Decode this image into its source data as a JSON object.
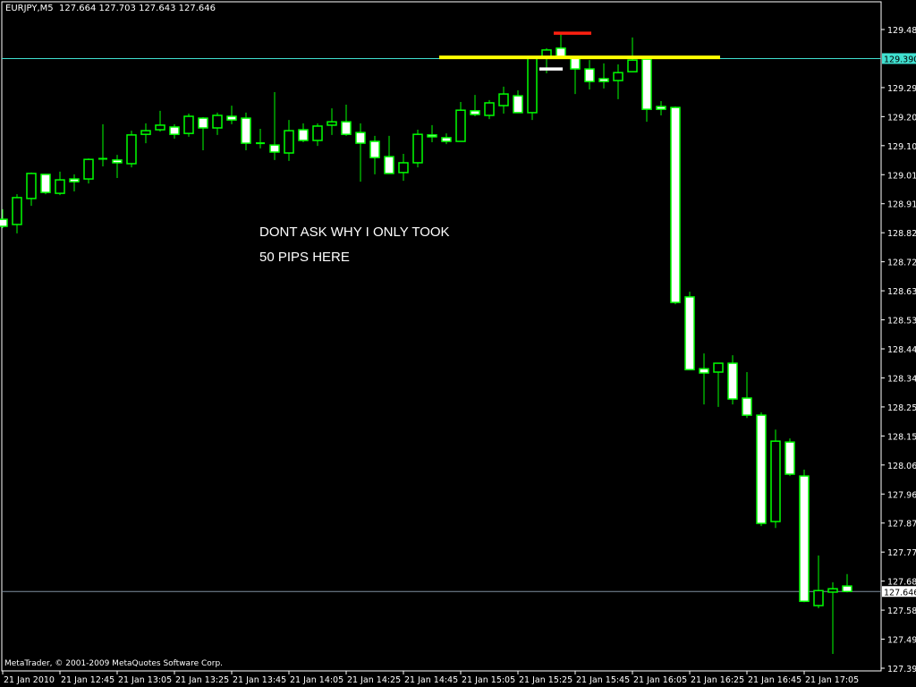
{
  "header": {
    "symbol": "EURJPY,M5",
    "open": "127.664",
    "high": "127.703",
    "low": "127.643",
    "close": "127.646"
  },
  "annotation_lines": [
    "DONT ASK WHY I ONLY TOOK",
    "50 PIPS HERE"
  ],
  "copyright": "MetaTrader, © 2001-2009 MetaQuotes Software Corp.",
  "colors": {
    "background": "#000000",
    "candle_outline": "#00ff00",
    "bear_body": "#ffffff",
    "bull_body": "#000000",
    "hline": "#40e0d0",
    "bid_line": "#8090a0",
    "yellow_line": "#ffff00",
    "red_line": "#ff2010",
    "white_line": "#ffffff"
  },
  "chart_data": {
    "type": "candlestick",
    "title": "",
    "ylim": [
      127.395,
      129.485
    ],
    "y_ticks": [
      "129.485",
      "129.295",
      "129.200",
      "129.105",
      "129.010",
      "128.915",
      "128.820",
      "128.725",
      "128.630",
      "128.535",
      "128.440",
      "128.345",
      "128.250",
      "128.155",
      "128.060",
      "127.965",
      "127.870",
      "127.775",
      "127.680",
      "127.585",
      "127.490",
      "127.395"
    ],
    "x_tick_labels": [
      "21 Jan 2010",
      "21 Jan 12:45",
      "21 Jan 13:05",
      "21 Jan 13:25",
      "21 Jan 13:45",
      "21 Jan 14:05",
      "21 Jan 14:25",
      "21 Jan 14:45",
      "21 Jan 15:05",
      "21 Jan 15:25",
      "21 Jan 15:45",
      "21 Jan 16:05",
      "21 Jan 16:25",
      "21 Jan 16:45",
      "21 Jan 17:05"
    ],
    "candles_ohlc": [
      [
        128.864,
        128.897,
        128.835,
        128.841
      ],
      [
        128.847,
        128.946,
        128.818,
        128.935
      ],
      [
        128.932,
        129.017,
        128.908,
        129.014
      ],
      [
        129.011,
        129.011,
        128.946,
        128.952
      ],
      [
        128.949,
        129.02,
        128.943,
        128.993
      ],
      [
        128.996,
        129.011,
        128.955,
        128.987
      ],
      [
        128.996,
        129.063,
        128.981,
        129.06
      ],
      [
        129.06,
        129.175,
        129.037,
        129.062
      ],
      [
        129.058,
        129.075,
        128.999,
        129.049
      ],
      [
        129.046,
        129.154,
        129.034,
        129.14
      ],
      [
        129.142,
        129.178,
        129.113,
        129.154
      ],
      [
        129.157,
        129.219,
        129.151,
        129.172
      ],
      [
        129.166,
        129.175,
        129.128,
        129.142
      ],
      [
        129.145,
        129.21,
        129.134,
        129.201
      ],
      [
        129.195,
        129.198,
        129.09,
        129.163
      ],
      [
        129.163,
        129.213,
        129.14,
        129.204
      ],
      [
        129.201,
        129.236,
        129.175,
        129.189
      ],
      [
        129.195,
        129.213,
        129.09,
        129.113
      ],
      [
        129.113,
        129.16,
        129.096,
        129.111
      ],
      [
        129.107,
        129.28,
        129.058,
        129.084
      ],
      [
        129.081,
        129.189,
        129.055,
        129.154
      ],
      [
        129.157,
        129.178,
        129.116,
        129.122
      ],
      [
        129.122,
        129.178,
        129.104,
        129.169
      ],
      [
        129.172,
        129.227,
        129.14,
        129.183
      ],
      [
        129.183,
        129.239,
        129.137,
        129.142
      ],
      [
        129.148,
        129.178,
        128.987,
        129.113
      ],
      [
        129.119,
        129.137,
        129.011,
        129.066
      ],
      [
        129.069,
        129.137,
        129.014,
        129.014
      ],
      [
        129.017,
        129.078,
        128.99,
        129.049
      ],
      [
        129.049,
        129.157,
        129.034,
        129.142
      ],
      [
        129.14,
        129.172,
        129.116,
        129.134
      ],
      [
        129.131,
        129.145,
        129.11,
        129.119
      ],
      [
        129.119,
        129.248,
        129.119,
        129.221
      ],
      [
        129.219,
        129.271,
        129.201,
        129.207
      ],
      [
        129.204,
        129.254,
        129.192,
        129.245
      ],
      [
        129.236,
        129.298,
        129.21,
        129.274
      ],
      [
        129.268,
        129.286,
        129.213,
        129.213
      ],
      [
        129.213,
        129.394,
        129.189,
        129.391
      ],
      [
        129.391,
        129.424,
        129.342,
        129.418
      ],
      [
        129.424,
        129.473,
        129.394,
        129.394
      ],
      [
        129.391,
        129.394,
        129.274,
        129.356
      ],
      [
        129.356,
        129.385,
        129.289,
        129.315
      ],
      [
        129.324,
        129.374,
        129.292,
        129.315
      ],
      [
        129.318,
        129.371,
        129.257,
        129.344
      ],
      [
        129.347,
        129.459,
        129.347,
        129.385
      ],
      [
        129.388,
        129.388,
        129.183,
        129.224
      ],
      [
        129.233,
        129.251,
        129.204,
        129.224
      ],
      [
        129.23,
        129.233,
        128.586,
        128.592
      ],
      [
        128.61,
        128.627,
        128.37,
        128.372
      ],
      [
        128.375,
        128.425,
        128.258,
        128.361
      ],
      [
        128.364,
        128.393,
        128.25,
        128.393
      ],
      [
        128.393,
        128.419,
        128.258,
        128.276
      ],
      [
        128.279,
        128.364,
        128.214,
        128.223
      ],
      [
        128.223,
        128.232,
        127.86,
        127.869
      ],
      [
        127.875,
        128.176,
        127.854,
        128.138
      ],
      [
        128.135,
        128.147,
        128.024,
        128.03
      ],
      [
        128.024,
        128.045,
        127.611,
        127.614
      ],
      [
        127.6,
        127.764,
        127.591,
        127.649
      ],
      [
        127.644,
        127.676,
        127.442,
        127.655
      ],
      [
        127.664,
        127.703,
        127.643,
        127.646
      ]
    ],
    "horizontal_line": {
      "price": "129.390"
    },
    "bid_line": {
      "price": "127.646"
    },
    "trend_segments": [
      {
        "name": "yellow-level",
        "price": 129.394,
        "from_candle": 30,
        "to_candle": 50,
        "color": "#ffff00"
      },
      {
        "name": "red-level",
        "price": 129.473,
        "from_candle": 38,
        "to_candle": 41,
        "color": "#ff2010"
      },
      {
        "name": "white-level",
        "price": 129.356,
        "from_candle": 37,
        "to_candle": 39,
        "color": "#ffffff"
      }
    ]
  }
}
